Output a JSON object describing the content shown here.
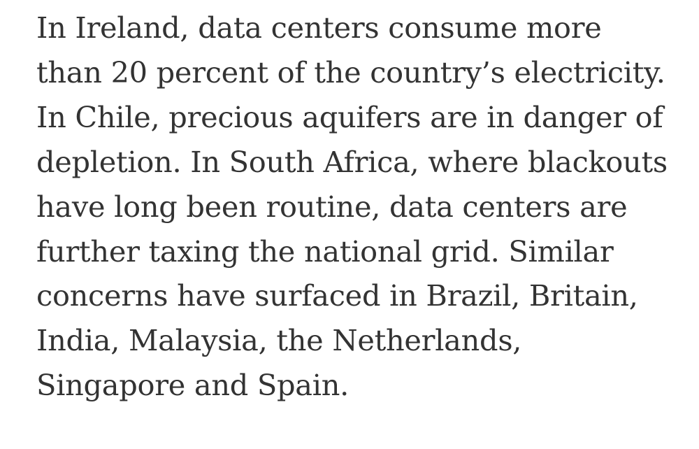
{
  "article": {
    "lines": [
      "In Ireland, data centers consume more",
      "than 20 percent of the country’s electricity.",
      "In Chile, precious aquifers are in danger of",
      "depletion. In South Africa, where blackouts",
      "have long been routine, data centers are",
      "further taxing the national grid. Similar",
      "concerns have surfaced in Brazil, Britain,",
      "India, Malaysia, the Netherlands,",
      "Singapore and Spain."
    ]
  }
}
